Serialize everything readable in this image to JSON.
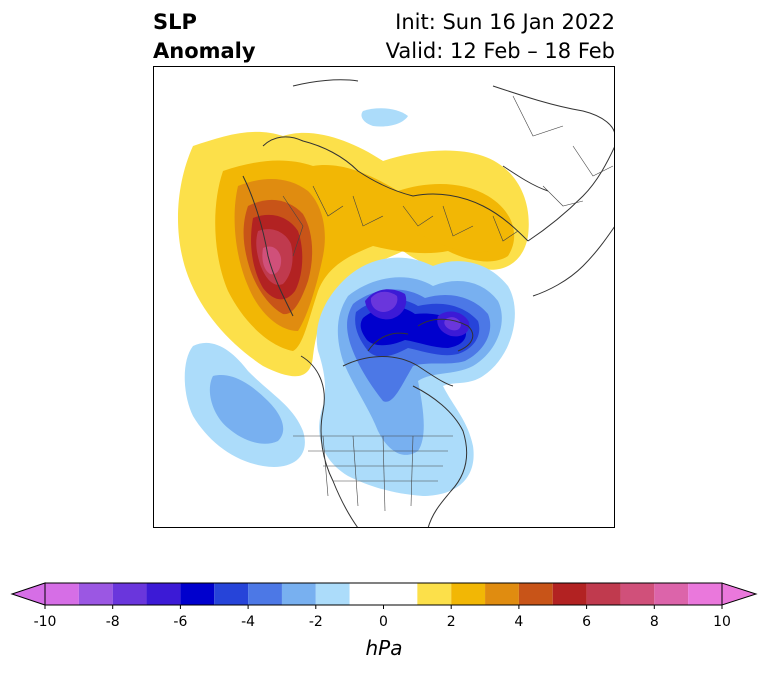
{
  "title": {
    "line1_left": "SLP",
    "line2_left": "Anomaly",
    "line1_right": "Init: Sun 16 Jan 2022",
    "line2_right": "Valid: 12 Feb – 18 Feb"
  },
  "colorbar": {
    "units": "hPa",
    "ticks": [
      "-10",
      "-8",
      "-6",
      "-4",
      "-2",
      "0",
      "2",
      "4",
      "6",
      "8",
      "10"
    ],
    "bins": [
      {
        "range": [
          -10,
          -9
        ],
        "color": "#d66ee6"
      },
      {
        "range": [
          -9,
          -8
        ],
        "color": "#9b57e3"
      },
      {
        "range": [
          -8,
          -7
        ],
        "color": "#6a36dc"
      },
      {
        "range": [
          -7,
          -6
        ],
        "color": "#3c1ad6"
      },
      {
        "range": [
          -6,
          -5
        ],
        "color": "#0000cd"
      },
      {
        "range": [
          -5,
          -4
        ],
        "color": "#2644d9"
      },
      {
        "range": [
          -4,
          -3
        ],
        "color": "#4c78e6"
      },
      {
        "range": [
          -3,
          -2
        ],
        "color": "#78b0f0"
      },
      {
        "range": [
          -2,
          -1
        ],
        "color": "#acdcfa"
      },
      {
        "range": [
          -1,
          1
        ],
        "color": "#ffffff"
      },
      {
        "range": [
          1,
          2
        ],
        "color": "#fce04a"
      },
      {
        "range": [
          2,
          3
        ],
        "color": "#f2b705"
      },
      {
        "range": [
          3,
          4
        ],
        "color": "#e08c10"
      },
      {
        "range": [
          4,
          5
        ],
        "color": "#c85418"
      },
      {
        "range": [
          5,
          6
        ],
        "color": "#b22222"
      },
      {
        "range": [
          6,
          7
        ],
        "color": "#c03a4e"
      },
      {
        "range": [
          7,
          8
        ],
        "color": "#d0507a"
      },
      {
        "range": [
          8,
          9
        ],
        "color": "#dc64aa"
      },
      {
        "range": [
          9,
          10
        ],
        "color": "#ea78dc"
      }
    ],
    "extend": "both"
  }
}
